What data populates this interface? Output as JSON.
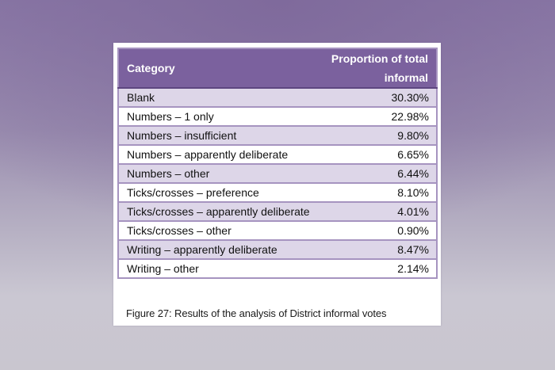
{
  "table": {
    "headers": {
      "category": "Category",
      "proportion_line1": "Proportion of total",
      "proportion_line2": "informal"
    },
    "rows": [
      {
        "category": "Blank",
        "value": "30.30%"
      },
      {
        "category": "Numbers – 1 only",
        "value": "22.98%"
      },
      {
        "category": "Numbers – insufficient",
        "value": "9.80%"
      },
      {
        "category": "Numbers – apparently deliberate",
        "value": "6.65%"
      },
      {
        "category": "Numbers – other",
        "value": "6.44%"
      },
      {
        "category": "Ticks/crosses – preference",
        "value": "8.10%"
      },
      {
        "category": "Ticks/crosses – apparently deliberate",
        "value": "4.01%"
      },
      {
        "category": "Ticks/crosses – other",
        "value": "0.90%"
      },
      {
        "category": "Writing – apparently deliberate",
        "value": "8.47%"
      },
      {
        "category": "Writing – other",
        "value": "2.14%"
      }
    ]
  },
  "caption": "Figure 27: Results of the analysis of District informal votes",
  "colors": {
    "header_bg": "#7b619e",
    "header_text": "#ffffff",
    "row_alt_bg": "#ddd6e8",
    "row_bg": "#ffffff",
    "border": "#a694c0"
  }
}
